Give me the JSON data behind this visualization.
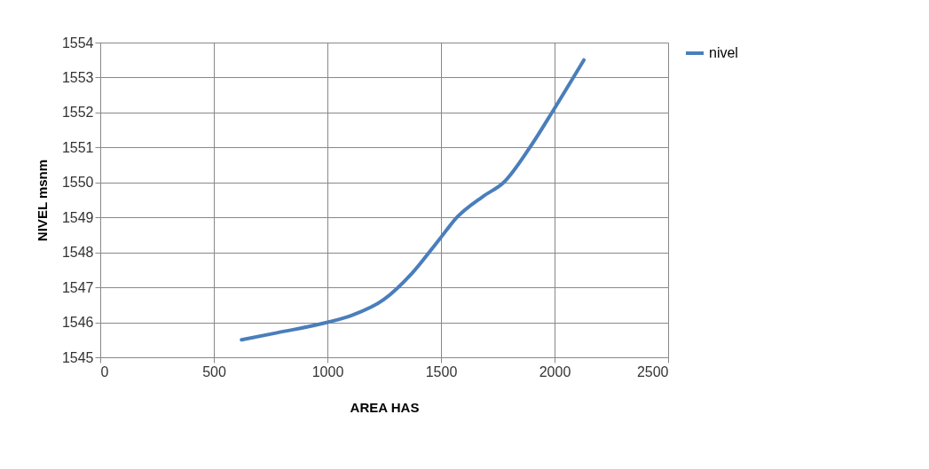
{
  "chart_data": {
    "type": "line",
    "xlabel": "AREA HAS",
    "ylabel": "NIVEL msnm",
    "x": [
      622,
      778,
      1001,
      1108,
      1248,
      1372,
      1496,
      1570,
      1685,
      1776,
      1891,
      1998,
      2129
    ],
    "series": [
      {
        "name": "nivel",
        "color": "#4a7ebb",
        "values": [
          1545.5,
          1545.7,
          1546.0,
          1546.2,
          1546.65,
          1547.4,
          1548.4,
          1549.0,
          1549.6,
          1550.0,
          1551.0,
          1552.1,
          1553.5
        ]
      }
    ],
    "xlim": [
      0,
      2500
    ],
    "xticks": [
      0,
      500,
      1000,
      1500,
      2000,
      2500
    ],
    "ylim": [
      1545,
      1554
    ],
    "yticks": [
      1545,
      1546,
      1547,
      1548,
      1549,
      1550,
      1551,
      1552,
      1553,
      1554
    ],
    "grid": true,
    "legend": "right",
    "marker": "none",
    "line_style": "solid"
  }
}
